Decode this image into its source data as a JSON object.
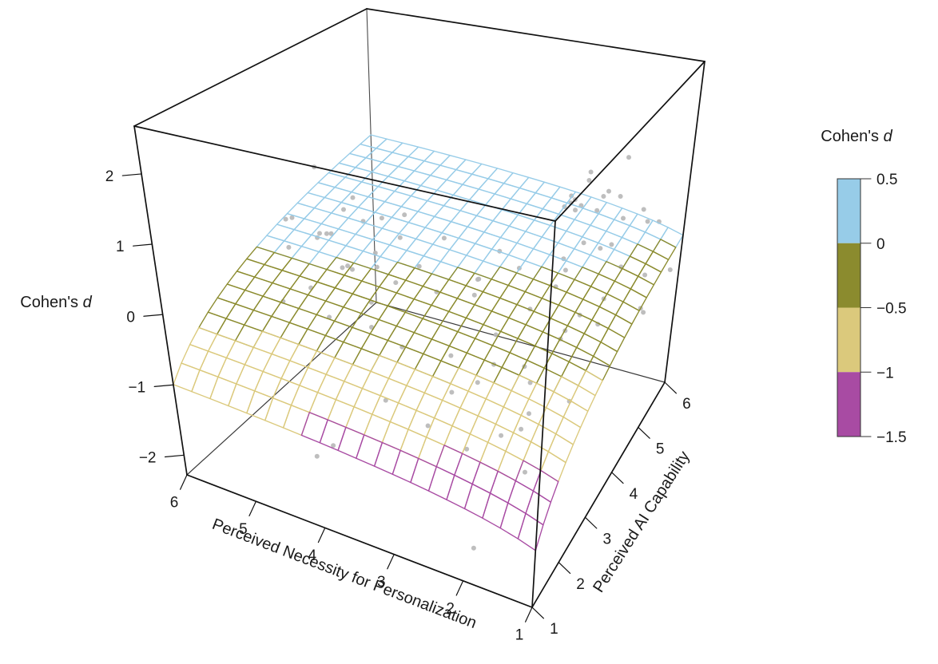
{
  "chart_data": {
    "type": "3d-surface-scatter",
    "description": "3D wireframe regression surface with observed scatter points, surface colored by Cohen's d bands",
    "x_axis": {
      "label": "Perceived Necessity for Personalization",
      "range": [
        1,
        6
      ],
      "ticks": [
        6,
        5,
        4,
        3,
        2,
        1
      ]
    },
    "y_axis": {
      "label": "Perceived AI Capability",
      "range": [
        1,
        6
      ],
      "ticks": [
        1,
        2,
        3,
        4,
        5,
        6
      ]
    },
    "z_axis": {
      "label": "Cohen's d",
      "label_prefix": "Cohen's ",
      "label_italic": "d",
      "ticks": [
        2,
        1,
        0,
        -1,
        -2
      ]
    },
    "legend": {
      "title": "Cohen's d",
      "title_prefix": "Cohen's ",
      "title_italic": "d",
      "tick_labels": [
        "0.5",
        "0",
        "−0.5",
        "−1",
        "−1.5"
      ],
      "bands": [
        {
          "from": 0,
          "to": 0.5,
          "color": "#97CCE8"
        },
        {
          "from": -0.5,
          "to": 0,
          "color": "#8B8B2E"
        },
        {
          "from": -1,
          "to": -0.5,
          "color": "#DBC97C"
        },
        {
          "from": -1.5,
          "to": -1,
          "color": "#A84BA3"
        }
      ]
    },
    "surface": {
      "model": "z = b0 + bx*ln(x) + by*ln(y)",
      "coefficients": {
        "b0": -1.55,
        "bx": 0.31,
        "by": 0.862
      },
      "grid_divisions": 20,
      "z_min": -1.55,
      "z_max": 0.55
    },
    "points": {
      "color": "#b9b9b9",
      "data": [
        [
          5.2,
          3.4,
          0.32
        ],
        [
          4.9,
          3.6,
          -0.12
        ],
        [
          5.5,
          3.2,
          0.18
        ],
        [
          4.6,
          3.8,
          0.06
        ],
        [
          5.1,
          3.0,
          -0.22
        ],
        [
          5.7,
          3.5,
          0.42
        ],
        [
          4.4,
          3.3,
          -0.38
        ],
        [
          5.0,
          4.2,
          0.25
        ],
        [
          4.8,
          2.9,
          -0.52
        ],
        [
          5.3,
          3.9,
          0.12
        ],
        [
          4.5,
          4.4,
          0.38
        ],
        [
          5.6,
          4.1,
          -0.05
        ],
        [
          4.3,
          3.1,
          -0.62
        ],
        [
          5.0,
          3.3,
          0.48
        ],
        [
          4.7,
          4.0,
          -0.28
        ],
        [
          5.4,
          2.8,
          -0.42
        ],
        [
          4.9,
          4.5,
          0.18
        ],
        [
          5.8,
          3.8,
          0.28
        ],
        [
          4.2,
          3.6,
          -0.18
        ],
        [
          5.2,
          4.3,
          0.52
        ],
        [
          4.8,
          3.4,
          0.85
        ],
        [
          5.3,
          3.6,
          1.28
        ],
        [
          4.6,
          3.2,
          0.1
        ],
        [
          5.1,
          3.8,
          -0.3
        ],
        [
          4.4,
          4.1,
          0.2
        ],
        [
          1.8,
          5.6,
          0.32
        ],
        [
          2.2,
          5.2,
          0.08
        ],
        [
          1.5,
          5.8,
          0.22
        ],
        [
          2.0,
          5.9,
          0.45
        ],
        [
          2.4,
          5.0,
          -0.1
        ],
        [
          1.3,
          5.4,
          -0.32
        ],
        [
          1.9,
          5.1,
          0.12
        ],
        [
          2.1,
          5.7,
          0.62
        ],
        [
          1.6,
          5.2,
          -0.15
        ],
        [
          2.5,
          5.5,
          0.35
        ],
        [
          1.4,
          6.0,
          0.12
        ],
        [
          2.3,
          5.8,
          0.22
        ],
        [
          1.7,
          4.9,
          -0.48
        ],
        [
          2.0,
          5.3,
          0.78
        ],
        [
          1.5,
          5.6,
          0.52
        ],
        [
          2.6,
          5.9,
          0.18
        ],
        [
          1.2,
          5.1,
          -0.62
        ],
        [
          1.9,
          5.5,
          -0.05
        ],
        [
          1.1,
          5.9,
          -0.5
        ],
        [
          1.3,
          5.5,
          -0.95
        ],
        [
          1.6,
          3.2,
          1.92
        ],
        [
          1.8,
          3.5,
          1.58
        ],
        [
          1.4,
          4.6,
          1.85
        ],
        [
          2.0,
          4.2,
          1.25
        ],
        [
          1.5,
          2.9,
          1.05
        ],
        [
          2.2,
          4.8,
          0.95
        ],
        [
          1.15,
          2.6,
          2.62
        ],
        [
          1.2,
          2.7,
          2.45
        ],
        [
          2.5,
          3.1,
          -0.22
        ],
        [
          3.0,
          2.8,
          -0.5
        ],
        [
          2.2,
          3.5,
          0.02
        ],
        [
          2.8,
          2.4,
          -0.75
        ],
        [
          3.4,
          3.2,
          0.1
        ],
        [
          1.9,
          2.9,
          -0.62
        ],
        [
          2.6,
          4.0,
          0.25
        ],
        [
          3.1,
          3.7,
          -0.12
        ],
        [
          2.0,
          2.2,
          -1.0
        ],
        [
          3.6,
          2.6,
          -0.45
        ],
        [
          2.4,
          2.0,
          -1.2
        ],
        [
          2.9,
          3.4,
          0.32
        ],
        [
          3.3,
          4.2,
          -0.2
        ],
        [
          1.8,
          3.8,
          -0.35
        ],
        [
          2.7,
          3.0,
          -0.9
        ],
        [
          3.8,
          3.5,
          0.22
        ],
        [
          2.1,
          4.1,
          0.05
        ],
        [
          3.5,
          1.9,
          -0.82
        ],
        [
          2.3,
          2.6,
          -0.32
        ],
        [
          3.0,
          2.1,
          -1.12
        ],
        [
          1.7,
          2.4,
          -0.72
        ],
        [
          3.7,
          4.0,
          0.42
        ],
        [
          1.6,
          2.1,
          -1.32
        ],
        [
          2.8,
          3.8,
          0.55
        ],
        [
          1.9,
          3.9,
          -0.55
        ],
        [
          2.2,
          3.4,
          -0.75
        ],
        [
          1.8,
          4.3,
          -0.4
        ],
        [
          1.4,
          3.1,
          -0.85
        ],
        [
          1.6,
          4.5,
          -0.6
        ],
        [
          2.0,
          2.9,
          -1.3
        ],
        [
          4.6,
          2.0,
          -2.02
        ],
        [
          4.4,
          2.1,
          -1.85
        ],
        [
          2.1,
          1.6,
          -2.22
        ]
      ]
    }
  }
}
